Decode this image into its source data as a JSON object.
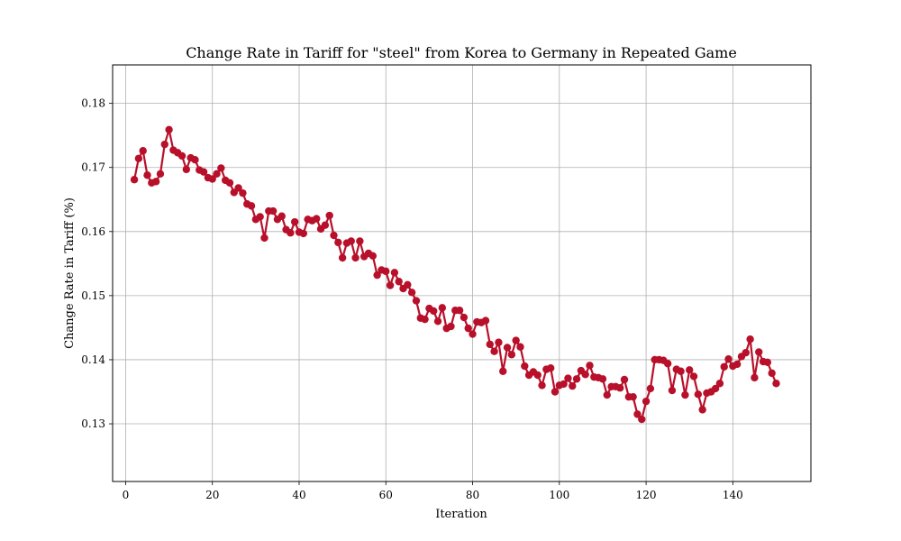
{
  "chart_data": {
    "type": "line",
    "title": "Change Rate in Tariff for \"steel\" from Korea to Germany in Repeated Game",
    "xlabel": "Iteration",
    "ylabel": "Change Rate in Tariff (%)",
    "xlim": [
      -3,
      158
    ],
    "ylim": [
      0.121,
      0.186
    ],
    "xticks": [
      0,
      20,
      40,
      60,
      80,
      100,
      120,
      140
    ],
    "yticks": [
      0.13,
      0.14,
      0.15,
      0.16,
      0.17,
      0.18
    ],
    "xtick_labels": [
      "0",
      "20",
      "40",
      "60",
      "80",
      "100",
      "120",
      "140"
    ],
    "ytick_labels": [
      "0.13",
      "0.14",
      "0.15",
      "0.16",
      "0.17",
      "0.18"
    ],
    "grid": true,
    "line_color": "#b8102a",
    "series": [
      {
        "x": [
          2,
          3,
          4,
          5,
          6,
          7,
          8,
          9,
          10,
          11,
          12,
          13,
          14,
          15,
          16,
          17,
          18,
          19,
          20,
          21,
          22,
          23,
          24,
          25,
          26,
          27,
          28,
          29,
          30,
          31,
          32,
          33,
          34,
          35,
          36,
          37,
          38,
          39,
          40,
          41,
          42,
          43,
          44,
          45,
          46,
          47,
          48,
          49,
          50,
          51,
          52,
          53,
          54,
          55,
          56,
          57,
          58,
          59,
          60,
          61,
          62,
          63,
          64,
          65,
          66,
          67,
          68,
          69,
          70,
          71,
          72,
          73,
          74,
          75,
          76,
          77,
          78,
          79,
          80,
          81,
          82,
          83,
          84,
          85,
          86,
          87,
          88,
          89,
          90,
          91,
          92,
          93,
          94,
          95,
          96,
          97,
          98,
          99,
          100,
          101,
          102,
          103,
          104,
          105,
          106,
          107,
          108,
          109,
          110,
          111,
          112,
          113,
          114,
          115,
          116,
          117,
          118,
          119,
          120,
          121,
          122,
          123,
          124,
          125,
          126,
          127,
          128,
          129,
          130,
          131,
          132,
          133,
          134,
          135,
          136,
          137,
          138,
          139,
          140,
          141,
          142,
          143,
          144,
          145,
          146,
          147,
          148,
          149,
          150
        ],
        "values": [
          0.1681,
          0.1714,
          0.1726,
          0.1688,
          0.1676,
          0.1678,
          0.169,
          0.1736,
          0.1759,
          0.1727,
          0.1723,
          0.1718,
          0.1697,
          0.1715,
          0.1712,
          0.1696,
          0.1693,
          0.1684,
          0.1682,
          0.169,
          0.1699,
          0.168,
          0.1676,
          0.1661,
          0.1668,
          0.166,
          0.1643,
          0.164,
          0.1619,
          0.1623,
          0.159,
          0.1632,
          0.1632,
          0.1619,
          0.1624,
          0.1603,
          0.1598,
          0.1615,
          0.1599,
          0.1597,
          0.1619,
          0.1617,
          0.162,
          0.1604,
          0.161,
          0.1625,
          0.1594,
          0.1583,
          0.1559,
          0.1582,
          0.1585,
          0.1559,
          0.1585,
          0.1561,
          0.1566,
          0.1562,
          0.1532,
          0.154,
          0.1538,
          0.1516,
          0.1536,
          0.1522,
          0.1511,
          0.1517,
          0.1505,
          0.1492,
          0.1465,
          0.1463,
          0.148,
          0.1476,
          0.146,
          0.1481,
          0.1449,
          0.1452,
          0.1477,
          0.1477,
          0.1466,
          0.1449,
          0.144,
          0.1459,
          0.1458,
          0.1461,
          0.1424,
          0.1413,
          0.1427,
          0.1382,
          0.1419,
          0.1408,
          0.143,
          0.142,
          0.139,
          0.1376,
          0.1381,
          0.1376,
          0.136,
          0.1385,
          0.1387,
          0.135,
          0.136,
          0.1362,
          0.1371,
          0.1359,
          0.137,
          0.1383,
          0.1377,
          0.1391,
          0.1373,
          0.1372,
          0.137,
          0.1345,
          0.1358,
          0.1358,
          0.1356,
          0.1369,
          0.1342,
          0.1342,
          0.1315,
          0.1307,
          0.1335,
          0.1355,
          0.14,
          0.14,
          0.1399,
          0.1394,
          0.1352,
          0.1385,
          0.1382,
          0.1345,
          0.1384,
          0.1374,
          0.1346,
          0.1322,
          0.1348,
          0.135,
          0.1355,
          0.1363,
          0.1389,
          0.1401,
          0.139,
          0.1393,
          0.1405,
          0.1411,
          0.1432,
          0.1372,
          0.1412,
          0.1397,
          0.1396,
          0.1379,
          0.1363
        ]
      }
    ]
  }
}
